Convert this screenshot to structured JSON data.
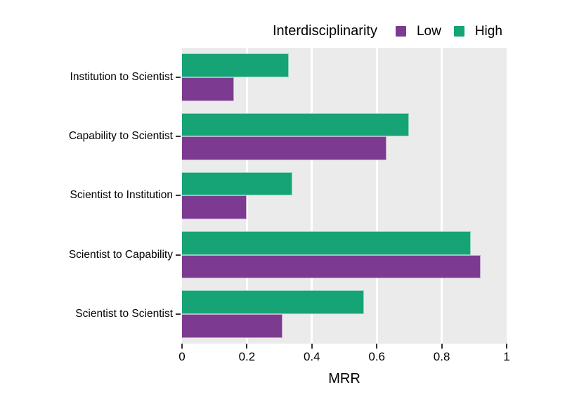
{
  "figure": {
    "background": "#ffffff",
    "panel_background": "#ebebeb",
    "grid_color": "#ffffff",
    "tick_color": "#333333",
    "text_color": "#000000"
  },
  "legend": {
    "title": "Interdisciplinarity",
    "items": [
      {
        "label": "Low",
        "color": "#7c3b90"
      },
      {
        "label": "High",
        "color": "#16a376"
      }
    ]
  },
  "chart_data": {
    "type": "bar",
    "orientation": "horizontal",
    "title": "",
    "xlabel": "MRR",
    "ylabel": "",
    "xlim": [
      0,
      1
    ],
    "x_tick_labels": [
      "0",
      "0.2",
      "0.4",
      "0.6",
      "0.8",
      "1"
    ],
    "x_tick_values": [
      0,
      0.2,
      0.4,
      0.6,
      0.8,
      1
    ],
    "grid": "vertical-major-only",
    "legend_title": "Interdisciplinarity",
    "legend_position": "top-right",
    "categories": [
      "Institution to Scientist",
      "Capability to Scientist",
      "Scientist to Institution",
      "Scientist to Capability",
      "Scientist to Scientist"
    ],
    "series": [
      {
        "name": "High",
        "color": "#16a376",
        "values": [
          0.33,
          0.7,
          0.34,
          0.89,
          0.56
        ]
      },
      {
        "name": "Low",
        "color": "#7c3b90",
        "values": [
          0.16,
          0.63,
          0.2,
          0.92,
          0.31
        ]
      }
    ]
  }
}
